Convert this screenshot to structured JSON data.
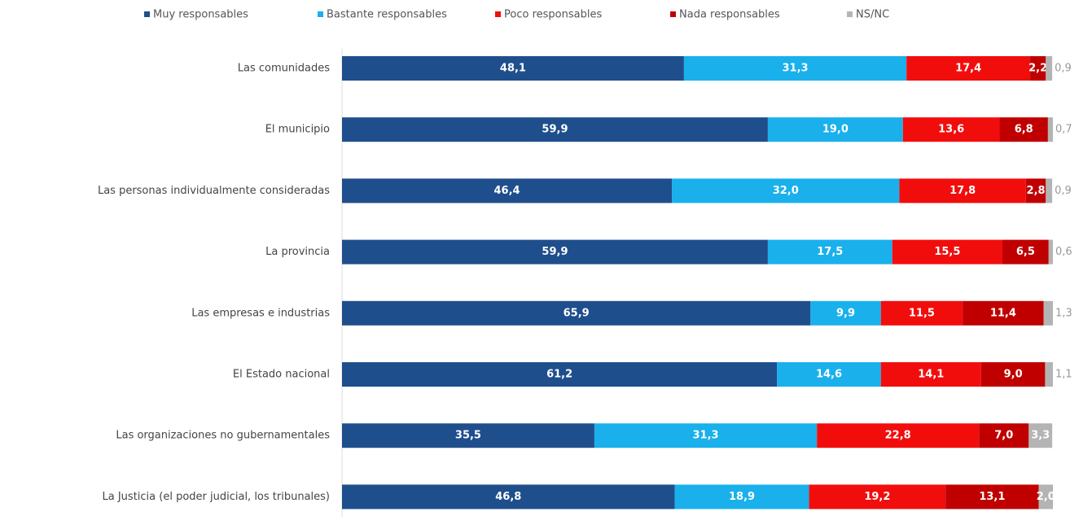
{
  "chart_data": {
    "type": "stacked-bar-horizontal",
    "categories": [
      "Las comunidades",
      "El municipio",
      "Las personas individualmente consideradas",
      "La provincia",
      "Las empresas e industrias",
      "El Estado nacional",
      "Las organizaciones no gubernamentales",
      "La Justicia (el poder judicial, los tribunales)"
    ],
    "xlim": [
      0,
      100
    ],
    "legend": "top",
    "series": [
      {
        "name": "Muy responsables",
        "color": "#1f4e8c",
        "values": [
          48.1,
          59.9,
          46.4,
          59.9,
          65.9,
          61.2,
          35.5,
          46.8
        ],
        "value_labels": [
          "48,1",
          "59,9",
          "46,4",
          "59,9",
          "65,9",
          "61,2",
          "35,5",
          "46,8"
        ]
      },
      {
        "name": "Bastante responsables",
        "color": "#19b0ec",
        "values": [
          31.3,
          19.0,
          32.0,
          17.5,
          9.9,
          14.6,
          31.3,
          18.9
        ],
        "value_labels": [
          "31,3",
          "19,0",
          "32,0",
          "17,5",
          "9,9",
          "14,6",
          "31,3",
          "18,9"
        ]
      },
      {
        "name": "Poco responsables",
        "color": "#f20d0d",
        "values": [
          17.4,
          13.6,
          17.8,
          15.5,
          11.5,
          14.1,
          22.8,
          19.2
        ],
        "value_labels": [
          "17,4",
          "13,6",
          "17,8",
          "15,5",
          "11,5",
          "14,1",
          "22,8",
          "19,2"
        ]
      },
      {
        "name": "Nada responsables",
        "color": "#c00000",
        "values": [
          2.2,
          6.8,
          2.8,
          6.5,
          11.4,
          9.0,
          7.0,
          13.1
        ],
        "value_labels": [
          "2,2",
          "6,8",
          "2,8",
          "6,5",
          "11,4",
          "9,0",
          "7,0",
          "13,1"
        ]
      },
      {
        "name": "NS/NC",
        "color": "#b4b4b4",
        "values": [
          0.9,
          0.7,
          0.9,
          0.6,
          1.3,
          1.1,
          3.3,
          2.0
        ],
        "value_labels": [
          "0,9",
          "0,7",
          "0,9",
          "0,6",
          "1,3",
          "1,1",
          "3,3",
          "2,0"
        ]
      }
    ]
  }
}
